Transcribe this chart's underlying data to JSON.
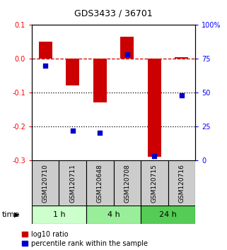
{
  "title": "GDS3433 / 36701",
  "samples": [
    "GSM120710",
    "GSM120711",
    "GSM120648",
    "GSM120708",
    "GSM120715",
    "GSM120716"
  ],
  "log10_ratio": [
    0.05,
    -0.08,
    -0.13,
    0.065,
    -0.29,
    0.005
  ],
  "percentile_rank": [
    70,
    22,
    20,
    78,
    3,
    48
  ],
  "bar_color": "#cc0000",
  "dot_color": "#0000cc",
  "ylim_left": [
    -0.3,
    0.1
  ],
  "ylim_right": [
    0,
    100
  ],
  "yticks_left": [
    0.1,
    0.0,
    -0.1,
    -0.2,
    -0.3
  ],
  "yticks_right": [
    100,
    75,
    50,
    25,
    0
  ],
  "time_groups": [
    {
      "label": "1 h",
      "start": 0,
      "end": 2,
      "color": "#ccffcc"
    },
    {
      "label": "4 h",
      "start": 2,
      "end": 4,
      "color": "#99ee99"
    },
    {
      "label": "24 h",
      "start": 4,
      "end": 6,
      "color": "#55cc55"
    }
  ],
  "legend_labels": [
    "log10 ratio",
    "percentile rank within the sample"
  ],
  "time_label": "time",
  "bg_color": "#ffffff",
  "dashed_line_color": "#cc0000",
  "bar_width": 0.5,
  "sample_box_color": "#cccccc",
  "title_fontsize": 9,
  "tick_fontsize": 7,
  "label_fontsize": 6.5,
  "time_fontsize": 8,
  "legend_fontsize": 7
}
